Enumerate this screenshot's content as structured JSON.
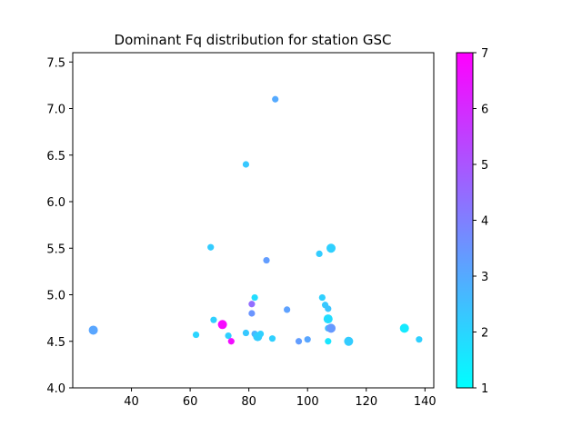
{
  "chart_data": {
    "type": "scatter",
    "title": "Dominant Fq distribution for station GSC",
    "xlabel": "",
    "ylabel": "",
    "xlim": [
      20,
      143
    ],
    "ylim": [
      4.0,
      7.6
    ],
    "xticks": [
      40,
      60,
      80,
      100,
      120,
      140
    ],
    "xtick_labels": [
      "40",
      "60",
      "80",
      "100",
      "120",
      "140"
    ],
    "yticks": [
      4.0,
      4.5,
      5.0,
      5.5,
      6.0,
      6.5,
      7.0,
      7.5
    ],
    "ytick_labels": [
      "4.0",
      "4.5",
      "5.0",
      "5.5",
      "6.0",
      "6.5",
      "7.0",
      "7.5"
    ],
    "grid": false,
    "colormap": "cool",
    "colorbar": {
      "min": 1,
      "max": 7,
      "ticks": [
        1,
        2,
        3,
        4,
        5,
        6,
        7
      ],
      "tick_labels": [
        "1",
        "2",
        "3",
        "4",
        "5",
        "6",
        "7"
      ],
      "color_low": "#00ffff",
      "color_high": "#ff00ff"
    },
    "points": [
      {
        "x": 27,
        "y": 4.62,
        "c": 3.1,
        "size": "large"
      },
      {
        "x": 62,
        "y": 4.57,
        "c": 2.0,
        "size": "small"
      },
      {
        "x": 67,
        "y": 5.51,
        "c": 2.2,
        "size": "small"
      },
      {
        "x": 68,
        "y": 4.73,
        "c": 2.1,
        "size": "small"
      },
      {
        "x": 71,
        "y": 4.68,
        "c": 6.8,
        "size": "large"
      },
      {
        "x": 73,
        "y": 4.56,
        "c": 2.1,
        "size": "small"
      },
      {
        "x": 74,
        "y": 4.5,
        "c": 6.7,
        "size": "small"
      },
      {
        "x": 79,
        "y": 6.4,
        "c": 2.3,
        "size": "small"
      },
      {
        "x": 79,
        "y": 4.59,
        "c": 2.3,
        "size": "small"
      },
      {
        "x": 81,
        "y": 4.9,
        "c": 4.4,
        "size": "small"
      },
      {
        "x": 81,
        "y": 4.8,
        "c": 3.5,
        "size": "small"
      },
      {
        "x": 82,
        "y": 4.97,
        "c": 1.8,
        "size": "small"
      },
      {
        "x": 82,
        "y": 4.58,
        "c": 2.8,
        "size": "small"
      },
      {
        "x": 83,
        "y": 4.55,
        "c": 2.2,
        "size": "large"
      },
      {
        "x": 84,
        "y": 4.58,
        "c": 2.1,
        "size": "small"
      },
      {
        "x": 86,
        "y": 5.37,
        "c": 3.3,
        "size": "small"
      },
      {
        "x": 88,
        "y": 4.53,
        "c": 2.1,
        "size": "small"
      },
      {
        "x": 89,
        "y": 7.1,
        "c": 3.0,
        "size": "small"
      },
      {
        "x": 93,
        "y": 4.84,
        "c": 3.2,
        "size": "small"
      },
      {
        "x": 97,
        "y": 4.5,
        "c": 3.3,
        "size": "small"
      },
      {
        "x": 100,
        "y": 4.52,
        "c": 3.1,
        "size": "small"
      },
      {
        "x": 104,
        "y": 5.44,
        "c": 2.2,
        "size": "small"
      },
      {
        "x": 105,
        "y": 4.97,
        "c": 2.1,
        "size": "small"
      },
      {
        "x": 106,
        "y": 4.89,
        "c": 2.3,
        "size": "small"
      },
      {
        "x": 107,
        "y": 4.85,
        "c": 2.4,
        "size": "small"
      },
      {
        "x": 107,
        "y": 4.74,
        "c": 1.8,
        "size": "large"
      },
      {
        "x": 107,
        "y": 4.5,
        "c": 1.6,
        "size": "small"
      },
      {
        "x": 107,
        "y": 4.64,
        "c": 2.5,
        "size": "small"
      },
      {
        "x": 108,
        "y": 5.5,
        "c": 2.1,
        "size": "large"
      },
      {
        "x": 108,
        "y": 4.64,
        "c": 3.4,
        "size": "large"
      },
      {
        "x": 114,
        "y": 4.5,
        "c": 2.2,
        "size": "large"
      },
      {
        "x": 133,
        "y": 4.64,
        "c": 1.5,
        "size": "large"
      },
      {
        "x": 138,
        "y": 4.52,
        "c": 2.1,
        "size": "small"
      }
    ]
  }
}
